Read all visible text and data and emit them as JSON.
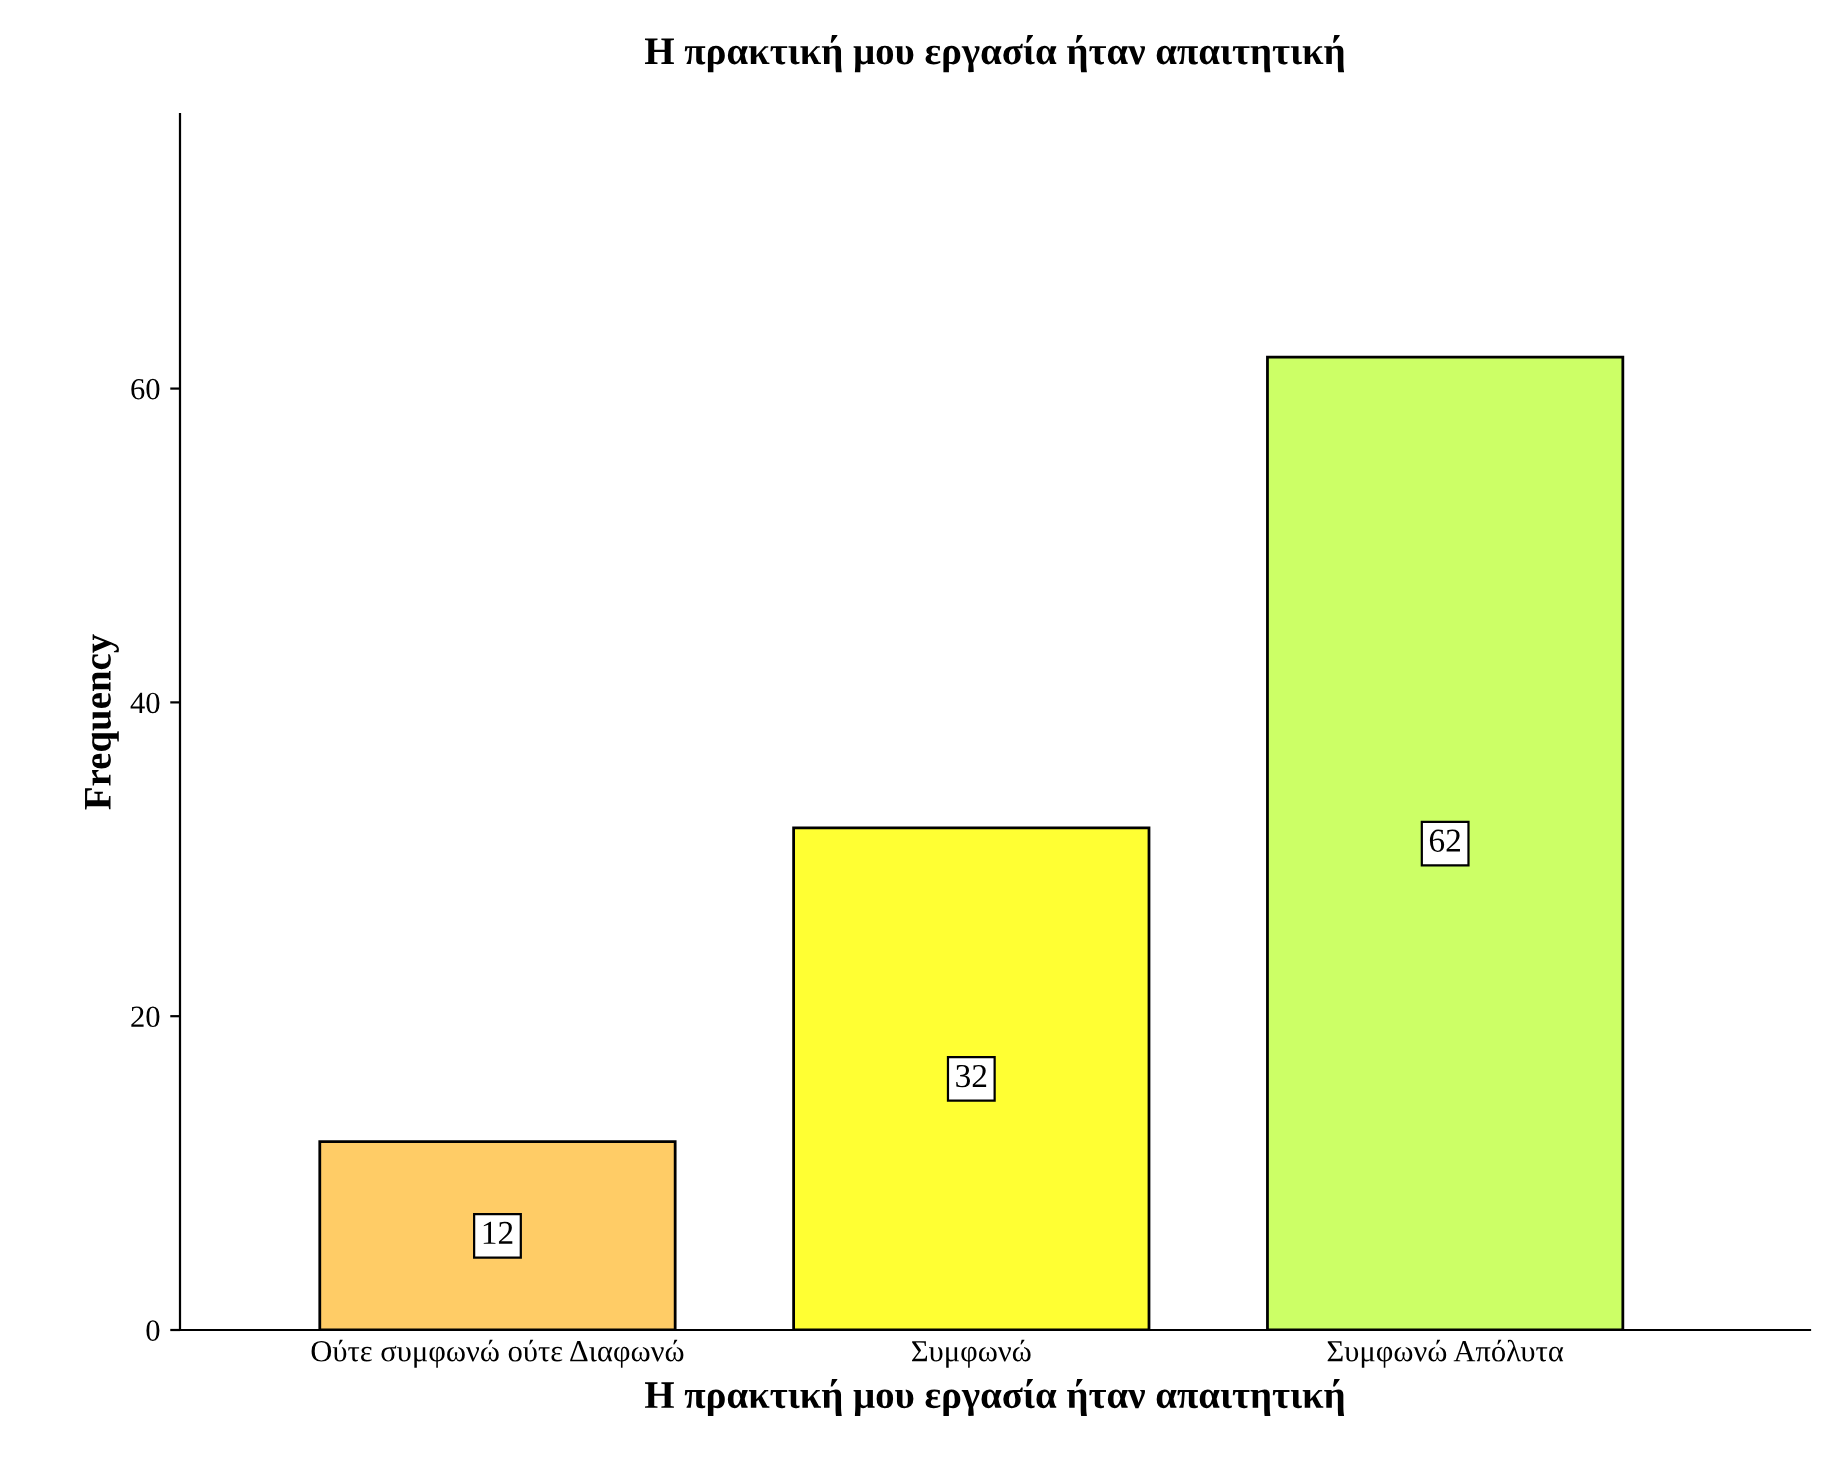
{
  "chart_data": {
    "type": "bar",
    "title": "Η πρακτική μου εργασία ήταν απαιτητική",
    "xlabel": "Η πρακτική μου εργασία ήταν απαιτητική",
    "ylabel": "Frequency",
    "categories": [
      "Ούτε συμφωνώ ούτε Διαφωνώ",
      "Συμφωνώ",
      "Συμφωνώ Απόλυτα"
    ],
    "values": [
      12,
      32,
      62
    ],
    "colors": [
      "#ffcc66",
      "#ffff33",
      "#ccff66"
    ],
    "ylim": [
      0,
      77.5
    ],
    "yticks": [
      0,
      20,
      40,
      60
    ],
    "grid": false,
    "data_labels": true
  }
}
